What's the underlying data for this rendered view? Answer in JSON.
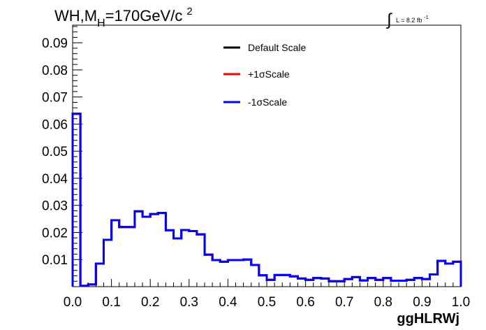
{
  "chart_data": {
    "type": "line",
    "title_parts": {
      "main": "WH,M",
      "sub": "H",
      "rest": "=170GeV/c",
      "sup": "2"
    },
    "lumi_parts": {
      "integral": "∫",
      "text": "L = 8.2 fb",
      "sup": "-1"
    },
    "xlabel": "ggHLRWj",
    "ylabel": "",
    "xlim": [
      0,
      1.0
    ],
    "ylim": [
      0,
      0.0965
    ],
    "x_ticks": [
      "0.0",
      "0.1",
      "0.2",
      "0.3",
      "0.4",
      "0.5",
      "0.6",
      "0.7",
      "0.8",
      "0.9",
      "1.0"
    ],
    "y_ticks": [
      "0.01",
      "0.02",
      "0.03",
      "0.04",
      "0.05",
      "0.06",
      "0.07",
      "0.08",
      "0.09"
    ],
    "grid": false,
    "legend_position": "top-center",
    "bin_edges_start": 0,
    "bin_width": 0.02,
    "series": [
      {
        "name": "Default Scale",
        "color": "#000000",
        "values": [
          0.0638,
          0.0003,
          0.0008,
          0.0085,
          0.0173,
          0.0245,
          0.022,
          0.022,
          0.0278,
          0.0258,
          0.0268,
          0.0272,
          0.0208,
          0.0178,
          0.0209,
          0.0205,
          0.0193,
          0.0118,
          0.0098,
          0.0092,
          0.0098,
          0.0098,
          0.01,
          0.008,
          0.0042,
          0.0025,
          0.0043,
          0.0043,
          0.0038,
          0.003,
          0.0025,
          0.0032,
          0.003,
          0.002,
          0.002,
          0.0028,
          0.0035,
          0.0023,
          0.0032,
          0.0025,
          0.0032,
          0.0022,
          0.0022,
          0.0025,
          0.0032,
          0.0028,
          0.0045,
          0.0095,
          0.0085,
          0.0092
        ]
      },
      {
        "name": "+1σScale",
        "color": "#ff0000",
        "values": [
          0.0638,
          0.0003,
          0.0008,
          0.0085,
          0.0173,
          0.0245,
          0.022,
          0.022,
          0.0278,
          0.0258,
          0.0268,
          0.0272,
          0.0208,
          0.0178,
          0.0209,
          0.0205,
          0.0193,
          0.0118,
          0.0098,
          0.0092,
          0.0098,
          0.0098,
          0.01,
          0.008,
          0.0042,
          0.0025,
          0.0043,
          0.0043,
          0.0038,
          0.003,
          0.0025,
          0.0032,
          0.003,
          0.002,
          0.002,
          0.0028,
          0.0035,
          0.0023,
          0.0032,
          0.0025,
          0.0032,
          0.0022,
          0.0022,
          0.0025,
          0.0032,
          0.0028,
          0.0045,
          0.0095,
          0.0085,
          0.0092
        ]
      },
      {
        "name": "-1σScale",
        "color": "#0000ff",
        "values": [
          0.0638,
          0.0003,
          0.0008,
          0.0085,
          0.0173,
          0.0245,
          0.022,
          0.022,
          0.0278,
          0.0258,
          0.0268,
          0.0272,
          0.0208,
          0.0178,
          0.0209,
          0.0205,
          0.0193,
          0.0118,
          0.0098,
          0.0092,
          0.0098,
          0.0098,
          0.01,
          0.008,
          0.0042,
          0.0025,
          0.0043,
          0.0043,
          0.0038,
          0.003,
          0.0025,
          0.0032,
          0.003,
          0.002,
          0.002,
          0.0028,
          0.0035,
          0.0023,
          0.0032,
          0.0025,
          0.0032,
          0.0022,
          0.0022,
          0.0025,
          0.0032,
          0.0028,
          0.0045,
          0.0095,
          0.0085,
          0.0092
        ]
      }
    ]
  }
}
